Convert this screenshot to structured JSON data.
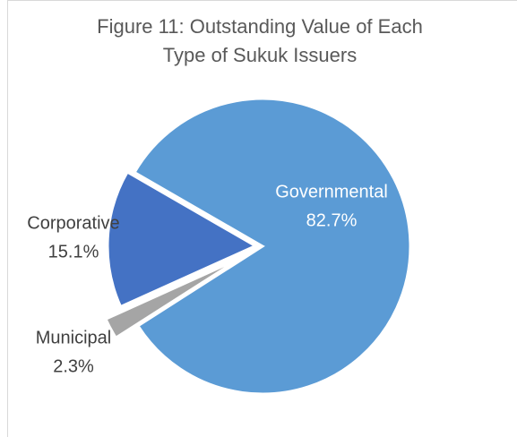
{
  "chart_data": {
    "type": "pie",
    "title": "Figure 11: Outstanding Value of Each Type of Sukuk Issuers",
    "categories": [
      "Governmental",
      "Municipal",
      "Corporative"
    ],
    "values": [
      82.7,
      2.3,
      15.1
    ],
    "value_labels": [
      "82.7%",
      "2.3%",
      "15.1%"
    ],
    "colors": [
      "#5b9bd5",
      "#a5a5a5",
      "#4472c4"
    ]
  }
}
